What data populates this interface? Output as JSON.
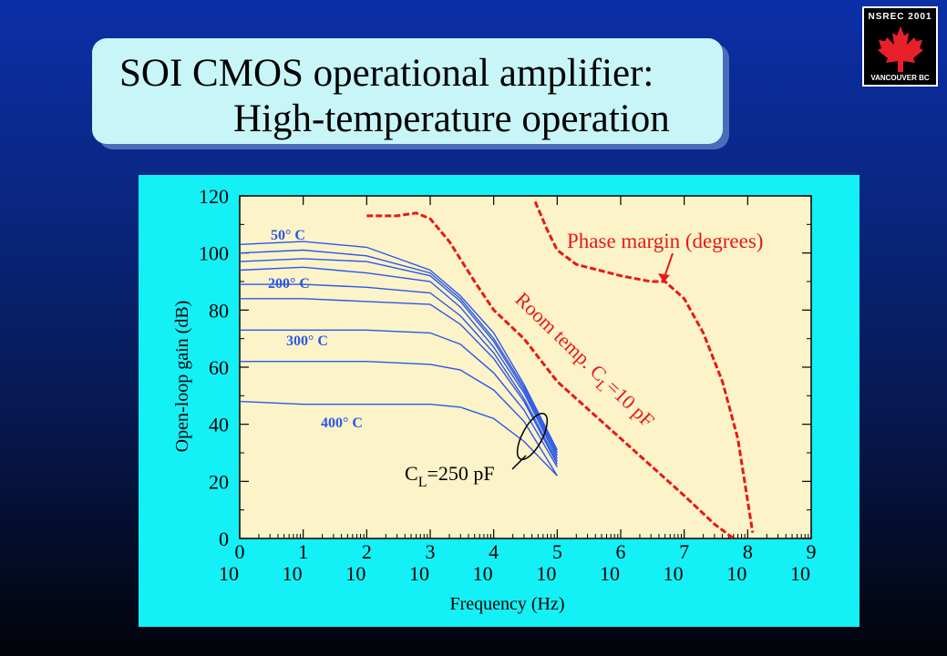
{
  "title": {
    "line1": "SOI CMOS operational amplifier:",
    "line2": "High-temperature operation"
  },
  "logo": {
    "top_text": "NSREC 2001",
    "bottom_text": "VANCOUVER BC",
    "icon": "maple-leaf-icon",
    "leaf_color": "#e8202a"
  },
  "colors": {
    "background": "#0a2888",
    "title_box": "#c8f6f8",
    "panel": "#13f0f6",
    "plot_bg": "#fdf3c8",
    "gain_curves": "#2a58e8",
    "phase_curves": "#e81818"
  },
  "chart_data": {
    "type": "line",
    "xlabel": "Frequency  (Hz)",
    "ylabel": "Open-loop gain  (dB)",
    "x_scale": "log",
    "xlim": [
      1,
      1000000000
    ],
    "ylim": [
      0,
      120
    ],
    "x_tick_bases": [
      "10",
      "10",
      "10",
      "10",
      "10",
      "10",
      "10",
      "10",
      "10",
      "10"
    ],
    "x_tick_exponents": [
      "0",
      "1",
      "2",
      "3",
      "4",
      "5",
      "6",
      "7",
      "8",
      "9"
    ],
    "y_ticks": [
      "0",
      "20",
      "40",
      "60",
      "80",
      "100",
      "120"
    ],
    "grid": false,
    "temperature_labels": [
      "50° C",
      "200° C",
      "300° C",
      "400° C"
    ],
    "annotations": {
      "phase": "Phase margin (degrees)",
      "room_temp": "Room temp. C",
      "room_temp_sub": "L",
      "room_temp_val": "=10 pF",
      "cl_main": "C",
      "cl_sub": "L",
      "cl_val": "=250 pF"
    },
    "gain_series": [
      {
        "x": [
          1,
          10,
          100,
          1000,
          3000,
          10000,
          30000,
          100000
        ],
        "y": [
          103,
          104,
          102,
          94,
          85,
          72,
          54,
          31
        ]
      },
      {
        "x": [
          1,
          10,
          100,
          1000,
          3000,
          10000,
          30000,
          100000
        ],
        "y": [
          100,
          101,
          99,
          93,
          84,
          70,
          53,
          30
        ]
      },
      {
        "x": [
          1,
          10,
          100,
          1000,
          3000,
          10000,
          30000,
          100000
        ],
        "y": [
          97,
          98,
          97,
          92,
          83,
          69,
          52,
          29
        ]
      },
      {
        "x": [
          1,
          10,
          100,
          1000,
          3000,
          10000,
          30000,
          100000
        ],
        "y": [
          94,
          95,
          93,
          90,
          81,
          67,
          51,
          28
        ]
      },
      {
        "x": [
          1,
          10,
          100,
          1000,
          3000,
          10000,
          30000,
          100000
        ],
        "y": [
          89,
          89,
          88,
          86,
          78,
          65,
          49,
          27
        ]
      },
      {
        "x": [
          1,
          10,
          100,
          1000,
          3000,
          10000,
          30000,
          100000
        ],
        "y": [
          84,
          84,
          83,
          82,
          75,
          63,
          48,
          26
        ]
      },
      {
        "x": [
          1,
          10,
          100,
          1000,
          3000,
          10000,
          30000,
          100000
        ],
        "y": [
          73,
          73,
          73,
          72,
          68,
          58,
          45,
          25
        ]
      },
      {
        "x": [
          1,
          10,
          100,
          1000,
          3000,
          10000,
          30000,
          100000
        ],
        "y": [
          62,
          62,
          62,
          61,
          59,
          52,
          41,
          22
        ]
      },
      {
        "x": [
          1,
          10,
          100,
          1000,
          3000,
          10000,
          30000,
          100000
        ],
        "y": [
          48,
          47,
          47,
          47,
          46,
          42,
          34,
          22
        ]
      }
    ],
    "phase_series": [
      {
        "name": "Room temp. CL=10 pF",
        "x": [
          100,
          300,
          600,
          1000,
          2000,
          5000,
          10000,
          30000,
          100000,
          1000000,
          10000000,
          30000000,
          60000000
        ],
        "y": [
          113,
          113,
          114,
          112,
          104,
          90,
          80,
          70,
          55,
          35,
          15,
          5,
          0
        ]
      },
      {
        "name": "Phase margin (degrees)",
        "x": [
          45000,
          70000,
          100000,
          200000,
          1000000,
          3000000,
          5000000,
          10000000,
          20000000,
          40000000,
          70000000,
          120000000
        ],
        "y": [
          118,
          108,
          101,
          96,
          92,
          90,
          90,
          84,
          72,
          55,
          35,
          2
        ]
      }
    ]
  }
}
